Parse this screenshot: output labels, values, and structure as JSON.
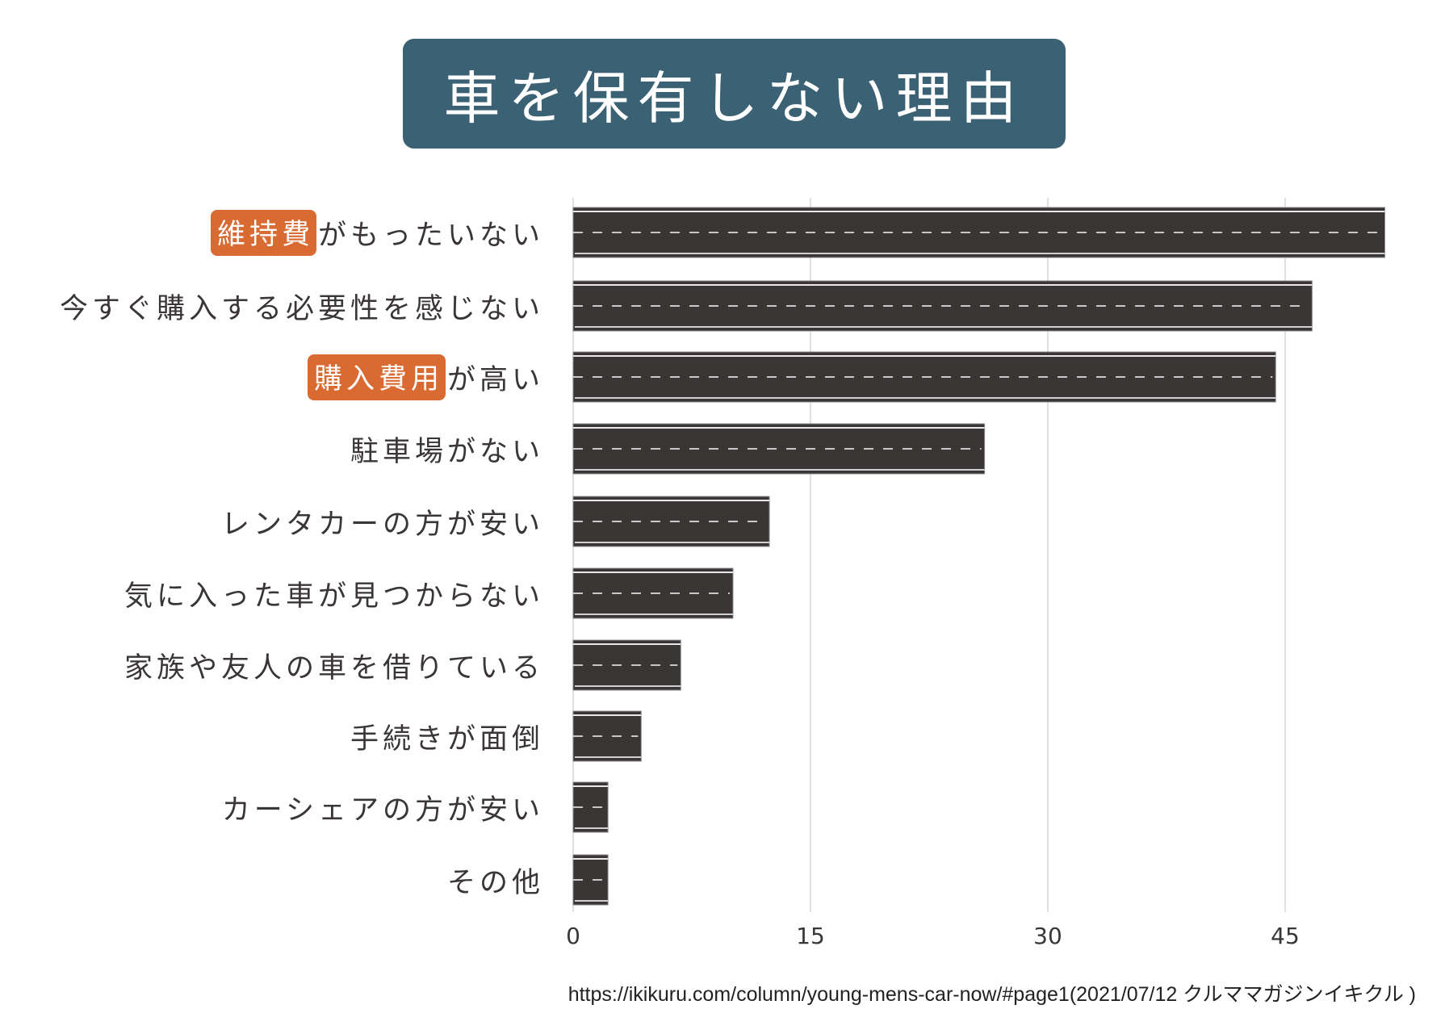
{
  "title": "車を保有しない理由",
  "source": "https://ikikuru.com/column/young-mens-car-now/#page1(2021/07/12 クルママガジンイキクル )",
  "colors": {
    "title_bg": "#3b6175",
    "bar": "#3a3636",
    "highlight": "#d96b32",
    "grid": "#d0d0d0"
  },
  "chart_data": {
    "type": "bar",
    "orientation": "horizontal",
    "title": "車を保有しない理由",
    "xlabel": "",
    "ylabel": "",
    "xlim": [
      0,
      52
    ],
    "xticks": [
      "0",
      "15",
      "30",
      "45"
    ],
    "grid": true,
    "categories": [
      {
        "highlight": "維持費",
        "rest": "がもったいない"
      },
      {
        "highlight": "",
        "rest": "今すぐ購入する必要性を感じない"
      },
      {
        "highlight": "購入費用",
        "rest": "が高い"
      },
      {
        "highlight": "",
        "rest": "駐車場がない"
      },
      {
        "highlight": "",
        "rest": "レンタカーの方が安い"
      },
      {
        "highlight": "",
        "rest": "気に入った車が見つからない"
      },
      {
        "highlight": "",
        "rest": "家族や友人の車を借りている"
      },
      {
        "highlight": "",
        "rest": "手続きが面倒"
      },
      {
        "highlight": "",
        "rest": "カーシェアの方が安い"
      },
      {
        "highlight": "",
        "rest": "その他"
      }
    ],
    "values": [
      51.3,
      46.7,
      44.4,
      26.0,
      12.4,
      10.1,
      6.8,
      4.3,
      2.2,
      2.2
    ]
  }
}
